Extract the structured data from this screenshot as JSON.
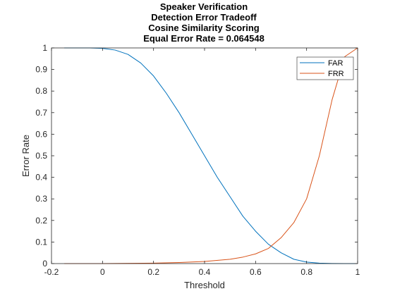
{
  "chart_data": {
    "type": "line",
    "title_lines": [
      "Speaker Verification",
      "Detection Error Tradeoff",
      "Cosine Similarity Scoring",
      "Equal Error Rate = 0.064548"
    ],
    "xlabel": "Threshold",
    "ylabel": "Error Rate",
    "xlim": [
      -0.2,
      1
    ],
    "ylim": [
      0,
      1
    ],
    "xticks": [
      -0.2,
      0,
      0.2,
      0.4,
      0.6,
      0.8,
      1
    ],
    "xtick_labels": [
      "-0.2",
      "0",
      "0.2",
      "0.4",
      "0.6",
      "0.8",
      "1"
    ],
    "yticks": [
      0,
      0.1,
      0.2,
      0.3,
      0.4,
      0.5,
      0.6,
      0.7,
      0.8,
      0.9,
      1
    ],
    "ytick_labels": [
      "0",
      "0.1",
      "0.2",
      "0.3",
      "0.4",
      "0.5",
      "0.6",
      "0.7",
      "0.8",
      "0.9",
      "1"
    ],
    "grid": false,
    "legend_position": "top-right",
    "series": [
      {
        "name": "FAR",
        "color": "#0072BD",
        "x": [
          -0.15,
          -0.1,
          -0.05,
          0,
          0.05,
          0.1,
          0.15,
          0.2,
          0.25,
          0.3,
          0.35,
          0.4,
          0.45,
          0.5,
          0.55,
          0.6,
          0.65,
          0.7,
          0.75,
          0.8,
          0.85,
          0.9,
          0.95,
          1.0
        ],
        "y": [
          1.0,
          1.0,
          1.0,
          0.998,
          0.99,
          0.97,
          0.93,
          0.87,
          0.79,
          0.7,
          0.6,
          0.5,
          0.4,
          0.31,
          0.22,
          0.15,
          0.09,
          0.05,
          0.02,
          0.007,
          0.002,
          0.0005,
          0.0001,
          0.0
        ]
      },
      {
        "name": "FRR",
        "color": "#D95319",
        "x": [
          -0.15,
          0,
          0.2,
          0.3,
          0.4,
          0.5,
          0.55,
          0.6,
          0.65,
          0.7,
          0.75,
          0.8,
          0.85,
          0.9,
          0.95,
          1.0
        ],
        "y": [
          0.0,
          0.0,
          0.002,
          0.005,
          0.01,
          0.02,
          0.03,
          0.045,
          0.07,
          0.12,
          0.19,
          0.3,
          0.5,
          0.76,
          0.96,
          1.0
        ]
      }
    ]
  }
}
